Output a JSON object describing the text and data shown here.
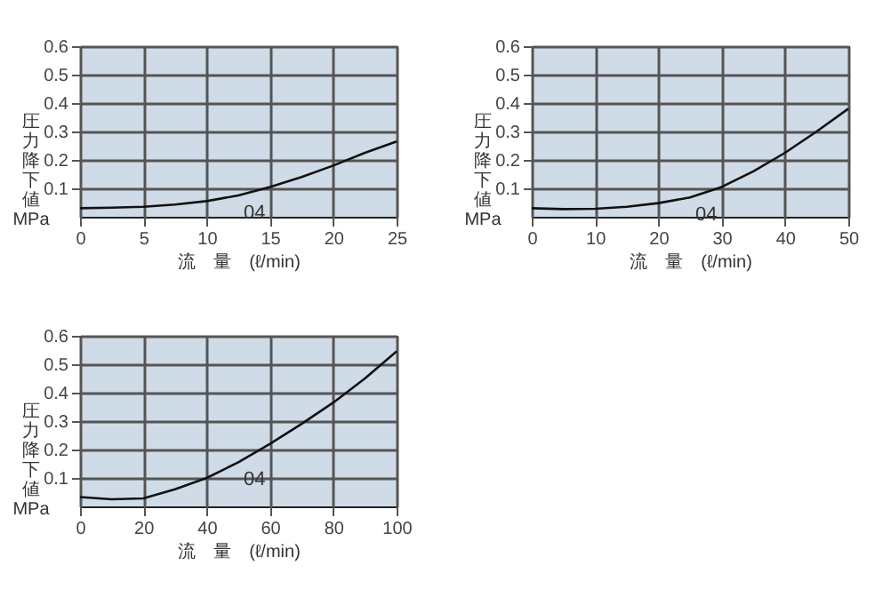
{
  "chart_data": [
    {
      "type": "line",
      "xlabel": "流　量　(ℓ/min)",
      "ylabel": "圧力降下値 MPa",
      "grid": true,
      "xlim": [
        0,
        25
      ],
      "xticks": [
        0,
        5,
        10,
        15,
        20,
        25
      ],
      "ylim": [
        0,
        0.6
      ],
      "yticks": [
        0.1,
        0.2,
        0.3,
        0.4,
        0.5,
        0.6
      ],
      "x": [
        0,
        2.5,
        5,
        7.5,
        10,
        12.5,
        15,
        17.5,
        20,
        22.5,
        25
      ],
      "series": [
        {
          "color": "#111111",
          "values": [
            0.03,
            0.032,
            0.035,
            0.043,
            0.055,
            0.075,
            0.105,
            0.14,
            0.18,
            0.225,
            0.265
          ]
        }
      ],
      "annotations": [
        {
          "text": "04",
          "x": 12.5,
          "y": 0.075
        }
      ]
    },
    {
      "type": "line",
      "xlabel": "流　量　(ℓ/min)",
      "ylabel": "圧力降下値 MPa",
      "grid": true,
      "xlim": [
        0,
        50
      ],
      "xticks": [
        0,
        10,
        20,
        30,
        40,
        50
      ],
      "ylim": [
        0,
        0.6
      ],
      "yticks": [
        0.1,
        0.2,
        0.3,
        0.4,
        0.5,
        0.6
      ],
      "x": [
        0,
        5,
        10,
        15,
        20,
        25,
        30,
        35,
        40,
        45,
        50
      ],
      "series": [
        {
          "color": "#111111",
          "values": [
            0.03,
            0.027,
            0.028,
            0.035,
            0.048,
            0.068,
            0.105,
            0.16,
            0.225,
            0.3,
            0.38
          ]
        }
      ],
      "annotations": [
        {
          "text": "04",
          "x": 25,
          "y": 0.068
        }
      ]
    },
    {
      "type": "line",
      "xlabel": "流　量　(ℓ/min)",
      "ylabel": "圧力降下値 MPa",
      "grid": true,
      "xlim": [
        0,
        100
      ],
      "xticks": [
        0,
        20,
        40,
        60,
        80,
        100
      ],
      "ylim": [
        0,
        0.6
      ],
      "yticks": [
        0.1,
        0.2,
        0.3,
        0.4,
        0.5,
        0.6
      ],
      "x": [
        0,
        10,
        20,
        30,
        40,
        50,
        60,
        70,
        80,
        90,
        100
      ],
      "series": [
        {
          "color": "#111111",
          "values": [
            0.033,
            0.025,
            0.028,
            0.06,
            0.1,
            0.155,
            0.22,
            0.29,
            0.365,
            0.45,
            0.545
          ]
        }
      ],
      "annotations": [
        {
          "text": "04",
          "x": 50,
          "y": 0.155
        }
      ]
    }
  ]
}
